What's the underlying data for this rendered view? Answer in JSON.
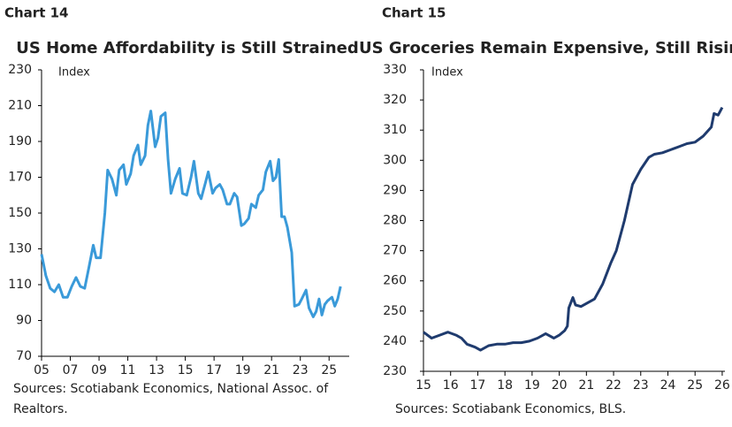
{
  "chart_data": [
    {
      "type": "line",
      "label": "Chart 14",
      "title": "US Home Affordability is Still Strained",
      "y_label": "Index",
      "source": [
        "Sources: Scotiabank Economics, National Assoc. of",
        "Realtors."
      ],
      "x": [
        2005.0,
        2005.3,
        2005.6,
        2005.9,
        2006.2,
        2006.5,
        2006.8,
        2007.1,
        2007.4,
        2007.7,
        2008.0,
        2008.3,
        2008.6,
        2008.8,
        2009.1,
        2009.4,
        2009.6,
        2009.9,
        2010.2,
        2010.4,
        2010.7,
        2010.9,
        2011.2,
        2011.4,
        2011.7,
        2011.9,
        2012.2,
        2012.4,
        2012.6,
        2012.9,
        2013.1,
        2013.3,
        2013.6,
        2013.8,
        2014.0,
        2014.3,
        2014.6,
        2014.8,
        2015.1,
        2015.4,
        2015.6,
        2015.9,
        2016.1,
        2016.4,
        2016.6,
        2016.9,
        2017.1,
        2017.4,
        2017.6,
        2017.9,
        2018.1,
        2018.4,
        2018.6,
        2018.9,
        2019.1,
        2019.4,
        2019.6,
        2019.9,
        2020.1,
        2020.4,
        2020.6,
        2020.9,
        2021.1,
        2021.3,
        2021.5,
        2021.7,
        2021.9,
        2022.1,
        2022.4,
        2022.6,
        2022.9,
        2023.1,
        2023.4,
        2023.6,
        2023.9,
        2024.1,
        2024.3,
        2024.5,
        2024.7,
        2024.9,
        2025.2,
        2025.4,
        2025.6,
        2025.8
      ],
      "series": [
        {
          "color": "#3a9ad9",
          "values": [
            127,
            115,
            108,
            106,
            110,
            103,
            103,
            109,
            114,
            109,
            108,
            120,
            132,
            125,
            125,
            150,
            174,
            169,
            160,
            174,
            177,
            166,
            172,
            182,
            188,
            177,
            182,
            199,
            207,
            187,
            192,
            204,
            206,
            180,
            161,
            169,
            175,
            161,
            160,
            170,
            179,
            161,
            158,
            167,
            173,
            161,
            164,
            166,
            163,
            155,
            155,
            161,
            159,
            143,
            144,
            147,
            155,
            153,
            160,
            163,
            173,
            179,
            168,
            170,
            180,
            148,
            148,
            142,
            128,
            98,
            99,
            102,
            107,
            97,
            92,
            95,
            102,
            93,
            99,
            101,
            103,
            98,
            102,
            109
          ]
        }
      ],
      "xlim": [
        2005,
        2026.4
      ],
      "ylim": [
        70,
        230
      ],
      "xticks": [
        {
          "value": 2005,
          "label": "05"
        },
        {
          "value": 2007,
          "label": "07"
        },
        {
          "value": 2009,
          "label": "09"
        },
        {
          "value": 2011,
          "label": "11"
        },
        {
          "value": 2013,
          "label": "13"
        },
        {
          "value": 2015,
          "label": "15"
        },
        {
          "value": 2017,
          "label": "17"
        },
        {
          "value": 2019,
          "label": "19"
        },
        {
          "value": 2021,
          "label": "21"
        },
        {
          "value": 2023,
          "label": "23"
        },
        {
          "value": 2025,
          "label": "25"
        }
      ],
      "yticks": [
        70,
        90,
        110,
        130,
        150,
        170,
        190,
        210,
        230
      ]
    },
    {
      "type": "line",
      "label": "Chart 15",
      "title": "US Groceries Remain Expensive, Still Rising",
      "y_label": "Index",
      "source": [
        "Sources: Scotiabank Economics, BLS."
      ],
      "x": [
        2015.0,
        2015.3,
        2015.6,
        2015.9,
        2016.2,
        2016.4,
        2016.6,
        2016.9,
        2017.1,
        2017.4,
        2017.7,
        2018.0,
        2018.3,
        2018.6,
        2018.9,
        2019.2,
        2019.5,
        2019.8,
        2020.0,
        2020.2,
        2020.3,
        2020.35,
        2020.5,
        2020.6,
        2020.8,
        2021.0,
        2021.3,
        2021.6,
        2021.9,
        2022.1,
        2022.4,
        2022.7,
        2023.0,
        2023.3,
        2023.5,
        2023.8,
        2024.1,
        2024.4,
        2024.7,
        2025.0,
        2025.3,
        2025.6,
        2025.7,
        2025.85,
        2026.0
      ],
      "series": [
        {
          "color": "#1f3b6e",
          "values": [
            243,
            241,
            242,
            243,
            242,
            241,
            239,
            238,
            237,
            238.5,
            239,
            239,
            239.5,
            239.5,
            240,
            241,
            242.5,
            241,
            242,
            243.5,
            245,
            251,
            254.5,
            252,
            251.5,
            252.5,
            254,
            259,
            266,
            270,
            280,
            292,
            297,
            301,
            302,
            302.5,
            303.5,
            304.5,
            305.5,
            306,
            308,
            311,
            315.5,
            315,
            317.5
          ]
        }
      ],
      "xlim": [
        2015,
        2026.1
      ],
      "ylim": [
        230,
        330
      ],
      "xticks": [
        {
          "value": 2015,
          "label": "15"
        },
        {
          "value": 2016,
          "label": "16"
        },
        {
          "value": 2017,
          "label": "17"
        },
        {
          "value": 2018,
          "label": "18"
        },
        {
          "value": 2019,
          "label": "19"
        },
        {
          "value": 2020,
          "label": "20"
        },
        {
          "value": 2021,
          "label": "21"
        },
        {
          "value": 2022,
          "label": "22"
        },
        {
          "value": 2023,
          "label": "23"
        },
        {
          "value": 2024,
          "label": "24"
        },
        {
          "value": 2025,
          "label": "25"
        },
        {
          "value": 2026,
          "label": "26"
        }
      ],
      "yticks": [
        230,
        240,
        250,
        260,
        270,
        280,
        290,
        300,
        310,
        320,
        330
      ]
    }
  ]
}
